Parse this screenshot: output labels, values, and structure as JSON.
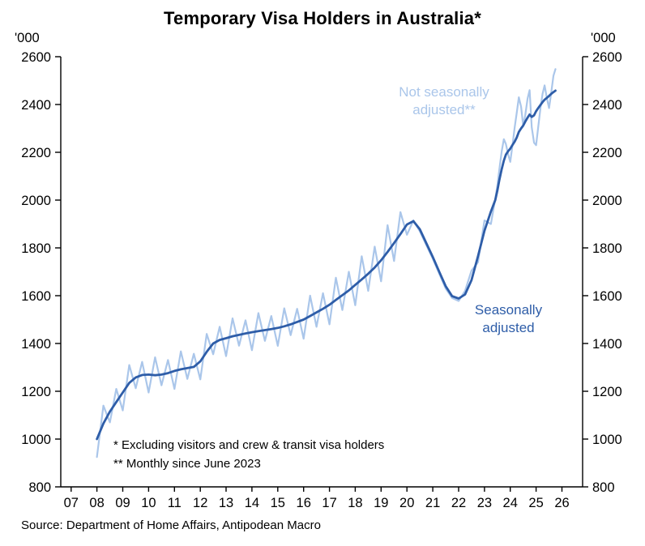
{
  "chart": {
    "title": "Temporary Visa Holders in Australia*",
    "unit_label": "'000",
    "annotation_nsa": "Not seasonally adjusted**",
    "annotation_sa": "Seasonally adjusted",
    "footnote1": "* Excluding visitors and crew & transit visa holders",
    "footnote2": "** Monthly since June 2023",
    "source": "Source: Department of Home Affairs, Antipodean Macro"
  },
  "chart_data": {
    "type": "line",
    "title": "Temporary Visa Holders in Australia*",
    "xlabel": "",
    "ylabel": "'000",
    "xlim": [
      2006.6,
      2026.8
    ],
    "ylim": [
      800,
      2600
    ],
    "grid": false,
    "legend_position": "inline-annotations",
    "axis_color": "#000000",
    "y_ticks": [
      800,
      1000,
      1200,
      1400,
      1600,
      1800,
      2000,
      2200,
      2400,
      2600
    ],
    "x_ticks": [
      {
        "value": 2007,
        "label": "07"
      },
      {
        "value": 2008,
        "label": "08"
      },
      {
        "value": 2009,
        "label": "09"
      },
      {
        "value": 2010,
        "label": "10"
      },
      {
        "value": 2011,
        "label": "11"
      },
      {
        "value": 2012,
        "label": "12"
      },
      {
        "value": 2013,
        "label": "13"
      },
      {
        "value": 2014,
        "label": "14"
      },
      {
        "value": 2015,
        "label": "15"
      },
      {
        "value": 2016,
        "label": "16"
      },
      {
        "value": 2017,
        "label": "17"
      },
      {
        "value": 2018,
        "label": "18"
      },
      {
        "value": 2019,
        "label": "19"
      },
      {
        "value": 2020,
        "label": "20"
      },
      {
        "value": 2021,
        "label": "21"
      },
      {
        "value": 2022,
        "label": "22"
      },
      {
        "value": 2023,
        "label": "23"
      },
      {
        "value": 2024,
        "label": "24"
      },
      {
        "value": 2025,
        "label": "25"
      },
      {
        "value": 2026,
        "label": "26"
      }
    ],
    "series": [
      {
        "name": "Not seasonally adjusted**",
        "color": "#aac6ea",
        "width": 2.2,
        "points": [
          [
            2008.0,
            925
          ],
          [
            2008.25,
            1140
          ],
          [
            2008.5,
            1070
          ],
          [
            2008.75,
            1210
          ],
          [
            2009.0,
            1120
          ],
          [
            2009.25,
            1310
          ],
          [
            2009.5,
            1213
          ],
          [
            2009.75,
            1323
          ],
          [
            2010.0,
            1195
          ],
          [
            2010.25,
            1342
          ],
          [
            2010.5,
            1225
          ],
          [
            2010.75,
            1331
          ],
          [
            2011.0,
            1210
          ],
          [
            2011.25,
            1367
          ],
          [
            2011.5,
            1252
          ],
          [
            2011.75,
            1357
          ],
          [
            2012.0,
            1250
          ],
          [
            2012.25,
            1440
          ],
          [
            2012.5,
            1355
          ],
          [
            2012.75,
            1470
          ],
          [
            2013.0,
            1347
          ],
          [
            2013.25,
            1505
          ],
          [
            2013.5,
            1391
          ],
          [
            2013.75,
            1497
          ],
          [
            2014.0,
            1372
          ],
          [
            2014.25,
            1527
          ],
          [
            2014.5,
            1411
          ],
          [
            2014.75,
            1515
          ],
          [
            2015.0,
            1390
          ],
          [
            2015.25,
            1547
          ],
          [
            2015.5,
            1435
          ],
          [
            2015.75,
            1545
          ],
          [
            2016.0,
            1420
          ],
          [
            2016.25,
            1600
          ],
          [
            2016.5,
            1470
          ],
          [
            2016.75,
            1610
          ],
          [
            2017.0,
            1480
          ],
          [
            2017.25,
            1675
          ],
          [
            2017.5,
            1540
          ],
          [
            2017.75,
            1700
          ],
          [
            2018.0,
            1560
          ],
          [
            2018.25,
            1765
          ],
          [
            2018.5,
            1620
          ],
          [
            2018.75,
            1805
          ],
          [
            2019.0,
            1660
          ],
          [
            2019.25,
            1895
          ],
          [
            2019.5,
            1745
          ],
          [
            2019.75,
            1950
          ],
          [
            2020.0,
            1855
          ],
          [
            2020.25,
            1915
          ],
          [
            2020.5,
            1870
          ],
          [
            2020.75,
            1812
          ],
          [
            2021.0,
            1755
          ],
          [
            2021.25,
            1692
          ],
          [
            2021.5,
            1630
          ],
          [
            2021.75,
            1590
          ],
          [
            2022.0,
            1578
          ],
          [
            2022.25,
            1620
          ],
          [
            2022.5,
            1705
          ],
          [
            2022.75,
            1740
          ],
          [
            2023.0,
            1915
          ],
          [
            2023.25,
            1900
          ],
          [
            2023.42,
            2005
          ],
          [
            2023.5,
            2060
          ],
          [
            2023.58,
            2130
          ],
          [
            2023.67,
            2205
          ],
          [
            2023.75,
            2255
          ],
          [
            2023.83,
            2235
          ],
          [
            2023.92,
            2190
          ],
          [
            2024.0,
            2160
          ],
          [
            2024.08,
            2225
          ],
          [
            2024.17,
            2305
          ],
          [
            2024.25,
            2365
          ],
          [
            2024.33,
            2430
          ],
          [
            2024.42,
            2390
          ],
          [
            2024.5,
            2310
          ],
          [
            2024.58,
            2355
          ],
          [
            2024.67,
            2425
          ],
          [
            2024.75,
            2460
          ],
          [
            2024.83,
            2305
          ],
          [
            2024.92,
            2240
          ],
          [
            2025.0,
            2230
          ],
          [
            2025.08,
            2305
          ],
          [
            2025.17,
            2385
          ],
          [
            2025.25,
            2445
          ],
          [
            2025.33,
            2480
          ],
          [
            2025.42,
            2425
          ],
          [
            2025.5,
            2385
          ],
          [
            2025.58,
            2445
          ],
          [
            2025.67,
            2520
          ],
          [
            2025.75,
            2548
          ]
        ]
      },
      {
        "name": "Seasonally adjusted",
        "color": "#2e5da8",
        "width": 2.8,
        "points": [
          [
            2008.0,
            1000
          ],
          [
            2008.25,
            1065
          ],
          [
            2008.5,
            1115
          ],
          [
            2008.75,
            1155
          ],
          [
            2009.0,
            1195
          ],
          [
            2009.25,
            1235
          ],
          [
            2009.5,
            1258
          ],
          [
            2009.75,
            1268
          ],
          [
            2010.0,
            1270
          ],
          [
            2010.25,
            1267
          ],
          [
            2010.5,
            1270
          ],
          [
            2010.75,
            1276
          ],
          [
            2011.0,
            1285
          ],
          [
            2011.25,
            1292
          ],
          [
            2011.5,
            1297
          ],
          [
            2011.75,
            1302
          ],
          [
            2012.0,
            1325
          ],
          [
            2012.25,
            1365
          ],
          [
            2012.5,
            1400
          ],
          [
            2012.75,
            1415
          ],
          [
            2013.0,
            1422
          ],
          [
            2013.25,
            1430
          ],
          [
            2013.5,
            1436
          ],
          [
            2013.75,
            1442
          ],
          [
            2014.0,
            1447
          ],
          [
            2014.25,
            1452
          ],
          [
            2014.5,
            1456
          ],
          [
            2014.75,
            1460
          ],
          [
            2015.0,
            1465
          ],
          [
            2015.25,
            1472
          ],
          [
            2015.5,
            1480
          ],
          [
            2015.75,
            1490
          ],
          [
            2016.0,
            1500
          ],
          [
            2016.25,
            1515
          ],
          [
            2016.5,
            1530
          ],
          [
            2016.75,
            1545
          ],
          [
            2017.0,
            1562
          ],
          [
            2017.25,
            1582
          ],
          [
            2017.5,
            1602
          ],
          [
            2017.75,
            1622
          ],
          [
            2018.0,
            1645
          ],
          [
            2018.25,
            1668
          ],
          [
            2018.5,
            1692
          ],
          [
            2018.75,
            1718
          ],
          [
            2019.0,
            1748
          ],
          [
            2019.25,
            1783
          ],
          [
            2019.5,
            1820
          ],
          [
            2019.75,
            1858
          ],
          [
            2020.0,
            1898
          ],
          [
            2020.25,
            1912
          ],
          [
            2020.5,
            1878
          ],
          [
            2020.75,
            1820
          ],
          [
            2021.0,
            1762
          ],
          [
            2021.25,
            1700
          ],
          [
            2021.5,
            1640
          ],
          [
            2021.75,
            1598
          ],
          [
            2022.0,
            1588
          ],
          [
            2022.25,
            1605
          ],
          [
            2022.5,
            1665
          ],
          [
            2022.75,
            1765
          ],
          [
            2023.0,
            1872
          ],
          [
            2023.25,
            1952
          ],
          [
            2023.42,
            2000
          ],
          [
            2023.5,
            2040
          ],
          [
            2023.58,
            2085
          ],
          [
            2023.67,
            2130
          ],
          [
            2023.75,
            2165
          ],
          [
            2023.83,
            2190
          ],
          [
            2023.92,
            2205
          ],
          [
            2024.0,
            2215
          ],
          [
            2024.08,
            2230
          ],
          [
            2024.17,
            2245
          ],
          [
            2024.25,
            2262
          ],
          [
            2024.33,
            2285
          ],
          [
            2024.42,
            2300
          ],
          [
            2024.5,
            2312
          ],
          [
            2024.58,
            2328
          ],
          [
            2024.67,
            2345
          ],
          [
            2024.75,
            2358
          ],
          [
            2024.83,
            2348
          ],
          [
            2024.92,
            2355
          ],
          [
            2025.0,
            2372
          ],
          [
            2025.08,
            2385
          ],
          [
            2025.17,
            2398
          ],
          [
            2025.25,
            2410
          ],
          [
            2025.33,
            2420
          ],
          [
            2025.42,
            2428
          ],
          [
            2025.5,
            2436
          ],
          [
            2025.58,
            2444
          ],
          [
            2025.67,
            2452
          ],
          [
            2025.75,
            2458
          ]
        ]
      }
    ],
    "annotations": [
      {
        "text": "Not seasonally adjusted**",
        "color": "#aac6ea",
        "x": 2021.6,
        "y": 2430
      },
      {
        "text": "Seasonally adjusted",
        "color": "#2e5da8",
        "x": 2023.5,
        "y": 1520
      }
    ]
  }
}
